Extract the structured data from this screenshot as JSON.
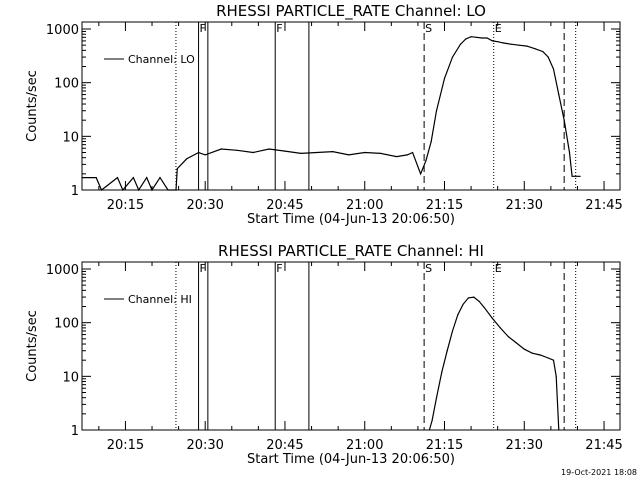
{
  "footer": {
    "timestamp": "19-Oct-2021 18:08"
  },
  "chart_data": [
    {
      "type": "line",
      "title": "RHESSI PARTICLE_RATE Channel: LO",
      "xlabel": "Start Time (04-Jun-13 20:06:50)",
      "ylabel": "Counts/sec",
      "yscale": "log",
      "ylim": [
        1,
        1000
      ],
      "xlim": [
        "20:06:50",
        "21:48:00"
      ],
      "ytick_labels": [
        "1",
        "10",
        "100",
        "1000"
      ],
      "xtick_labels": [
        "20:15",
        "20:30",
        "20:45",
        "21:00",
        "21:15",
        "21:30",
        "21:45"
      ],
      "legend": {
        "label": "Channel: LO",
        "position": "upper-left"
      },
      "markers": [
        {
          "time": "20:24:30",
          "style": "dotted",
          "label": ""
        },
        {
          "time": "20:28:45",
          "style": "solid",
          "label": "F"
        },
        {
          "time": "20:30:30",
          "style": "solid",
          "label": ""
        },
        {
          "time": "20:43:10",
          "style": "solid",
          "label": "F"
        },
        {
          "time": "20:49:30",
          "style": "solid",
          "label": ""
        },
        {
          "time": "21:11:10",
          "style": "dashed",
          "label": "S"
        },
        {
          "time": "21:24:15",
          "style": "dotted",
          "label": "E"
        },
        {
          "time": "21:37:30",
          "style": "dashed",
          "label": ""
        },
        {
          "time": "21:39:40",
          "style": "dotted",
          "label": ""
        }
      ],
      "series": [
        {
          "name": "Channel: LO",
          "x": [
            "20:06:50",
            "20:09:30",
            "20:10:30",
            "20:13:30",
            "20:14:30",
            "20:16:30",
            "20:17:30",
            "20:19:00",
            "20:20:00",
            "20:21:30",
            "20:23:00",
            "20:24:30",
            "20:24:45",
            "20:26:30",
            "20:28:45",
            "20:30:00",
            "20:33:00",
            "20:36:00",
            "20:39:00",
            "20:42:00",
            "20:45:00",
            "20:48:00",
            "20:51:00",
            "20:54:00",
            "20:57:00",
            "21:00:00",
            "21:03:00",
            "21:06:00",
            "21:08:00",
            "21:09:00",
            "21:10:30",
            "21:11:30",
            "21:12:30",
            "21:13:30",
            "21:15:00",
            "21:16:30",
            "21:18:00",
            "21:19:00",
            "21:20:00",
            "21:21:00",
            "21:22:00",
            "21:23:00",
            "21:24:00",
            "21:25:00",
            "21:26:00",
            "21:27:30",
            "21:29:00",
            "21:30:30",
            "21:32:00",
            "21:33:30",
            "21:34:30",
            "21:35:30",
            "21:36:30",
            "21:37:30",
            "21:38:30",
            "21:39:00",
            "21:40:30"
          ],
          "y": [
            1.7,
            1.7,
            1.0,
            1.7,
            1.0,
            1.7,
            1.0,
            1.7,
            1.0,
            1.7,
            1.0,
            1.0,
            2.5,
            3.8,
            5.0,
            4.5,
            5.8,
            5.5,
            5.0,
            5.8,
            5.3,
            4.8,
            5.0,
            5.2,
            4.5,
            5.0,
            4.8,
            4.2,
            4.5,
            5.0,
            2.0,
            3.5,
            8.0,
            30,
            120,
            300,
            520,
            650,
            720,
            700,
            680,
            680,
            600,
            580,
            550,
            520,
            500,
            480,
            430,
            380,
            300,
            180,
            60,
            20,
            5,
            1.8,
            1.8
          ]
        }
      ]
    },
    {
      "type": "line",
      "title": "RHESSI PARTICLE_RATE Channel: HI",
      "xlabel": "Start Time (04-Jun-13 20:06:50)",
      "ylabel": "Counts/sec",
      "yscale": "log",
      "ylim": [
        1,
        1000
      ],
      "xlim": [
        "20:06:50",
        "21:48:00"
      ],
      "ytick_labels": [
        "1",
        "10",
        "100",
        "1000"
      ],
      "xtick_labels": [
        "20:15",
        "20:30",
        "20:45",
        "21:00",
        "21:15",
        "21:30",
        "21:45"
      ],
      "legend": {
        "label": "Channel: HI",
        "position": "upper-left"
      },
      "markers": [
        {
          "time": "20:24:30",
          "style": "dotted",
          "label": ""
        },
        {
          "time": "20:28:45",
          "style": "solid",
          "label": "F"
        },
        {
          "time": "20:30:30",
          "style": "solid",
          "label": ""
        },
        {
          "time": "20:43:10",
          "style": "solid",
          "label": "F"
        },
        {
          "time": "20:49:30",
          "style": "solid",
          "label": ""
        },
        {
          "time": "21:11:10",
          "style": "dashed",
          "label": "S"
        },
        {
          "time": "21:24:15",
          "style": "dotted",
          "label": "E"
        },
        {
          "time": "21:37:30",
          "style": "dashed",
          "label": ""
        },
        {
          "time": "21:39:40",
          "style": "dotted",
          "label": ""
        }
      ],
      "series": [
        {
          "name": "Channel: HI",
          "x": [
            "21:12:10",
            "21:12:40",
            "21:13:30",
            "21:14:30",
            "21:15:30",
            "21:16:30",
            "21:17:30",
            "21:18:30",
            "21:19:30",
            "21:20:30",
            "21:21:30",
            "21:22:30",
            "21:24:00",
            "21:25:30",
            "21:27:00",
            "21:28:30",
            "21:30:00",
            "21:31:30",
            "21:33:00",
            "21:34:30",
            "21:35:30",
            "21:36:00",
            "21:36:30"
          ],
          "y": [
            1.0,
            1.5,
            4.0,
            12,
            30,
            70,
            140,
            220,
            290,
            300,
            250,
            190,
            120,
            80,
            55,
            42,
            32,
            27,
            25,
            22,
            20,
            10,
            1.0
          ]
        }
      ]
    }
  ]
}
